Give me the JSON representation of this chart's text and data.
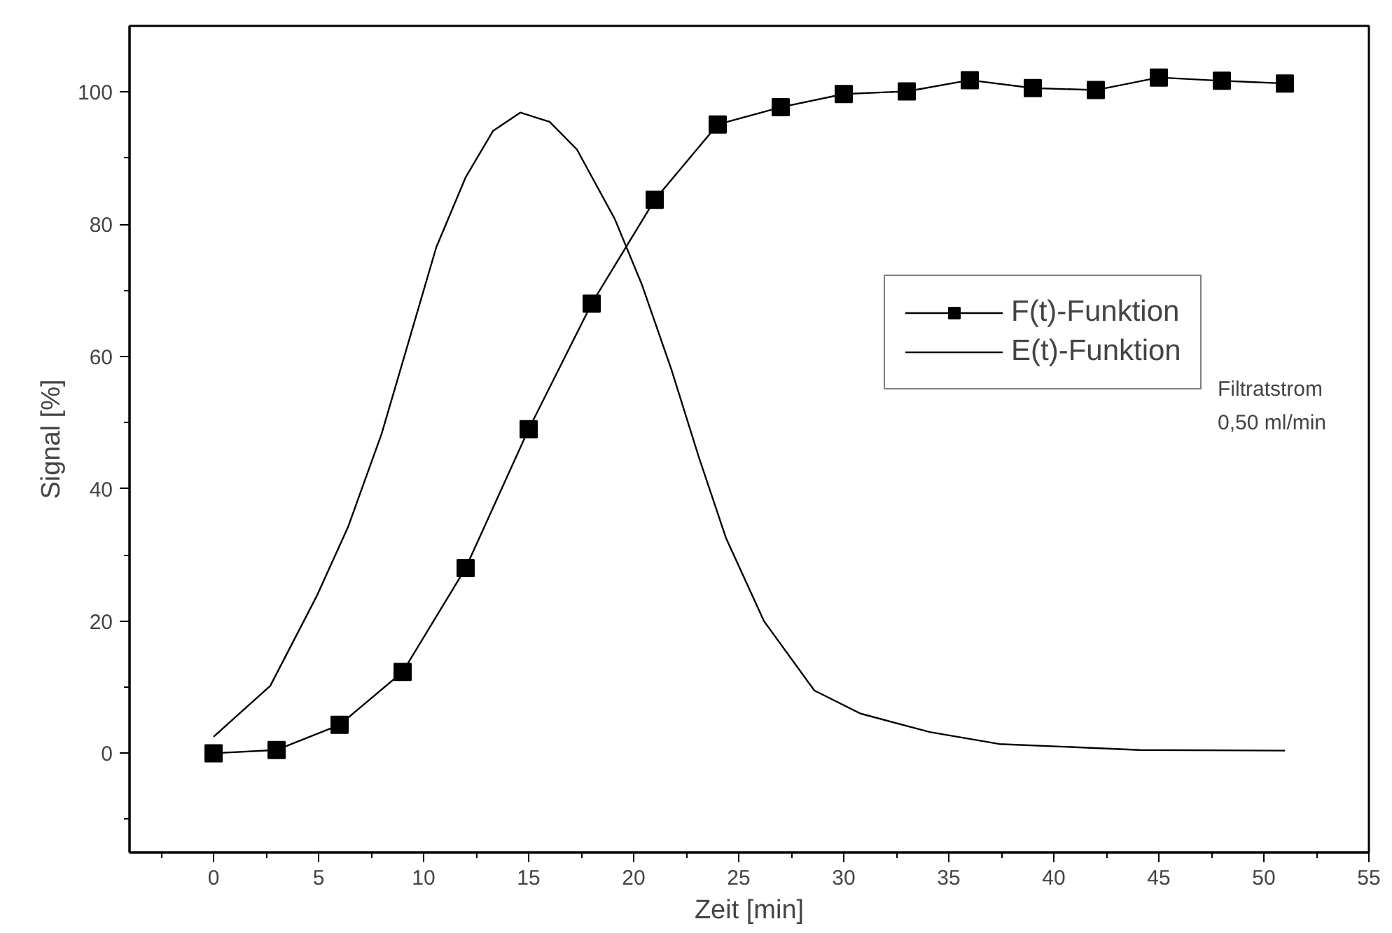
{
  "chart_data": {
    "type": "line",
    "xlabel": "Zeit [min]",
    "ylabel": "Signal [%]",
    "xlim": [
      -4,
      55
    ],
    "xticks": [
      0,
      5,
      10,
      15,
      20,
      25,
      30,
      35,
      40,
      45,
      50,
      55
    ],
    "ylim": [
      -15,
      110
    ],
    "yticks": [
      0,
      20,
      40,
      60,
      80,
      100
    ],
    "grid": false,
    "legend": "top right",
    "annotations": [
      "Filtratstrom\n0,50 ml/min"
    ],
    "series": [
      {
        "name": "F(t)-Funktion",
        "color": "#000000",
        "marker": "square",
        "x": [
          0,
          3,
          6,
          9,
          12,
          15,
          18,
          21,
          24,
          27,
          30,
          33,
          36,
          39,
          42,
          45,
          48,
          51
        ],
        "values": [
          0,
          0.5,
          4.3,
          12.3,
          28,
          49,
          68,
          83.7,
          95.1,
          97.7,
          99.7,
          100.1,
          101.8,
          100.6,
          100.3,
          102.2,
          101.7,
          101.3
        ]
      },
      {
        "name": "E(t)-Funktion",
        "color": "#000000",
        "marker": "none",
        "x": [
          0,
          2.7,
          4.9,
          6.4,
          8,
          9.3,
          10.6,
          12,
          13.3,
          14.6,
          16,
          17.3,
          19.1,
          20.4,
          21.8,
          23.1,
          24.4,
          26.2,
          28.6,
          30.8,
          34.1,
          37.4,
          44.1,
          51
        ],
        "values": [
          2.5,
          10.2,
          23.7,
          34.2,
          48.3,
          62.4,
          76.5,
          87.1,
          94.1,
          96.9,
          95.5,
          91.3,
          80.8,
          70.8,
          58,
          44.8,
          32.5,
          20,
          9.5,
          6,
          3.2,
          1.4,
          0.5,
          0.4
        ]
      }
    ]
  }
}
